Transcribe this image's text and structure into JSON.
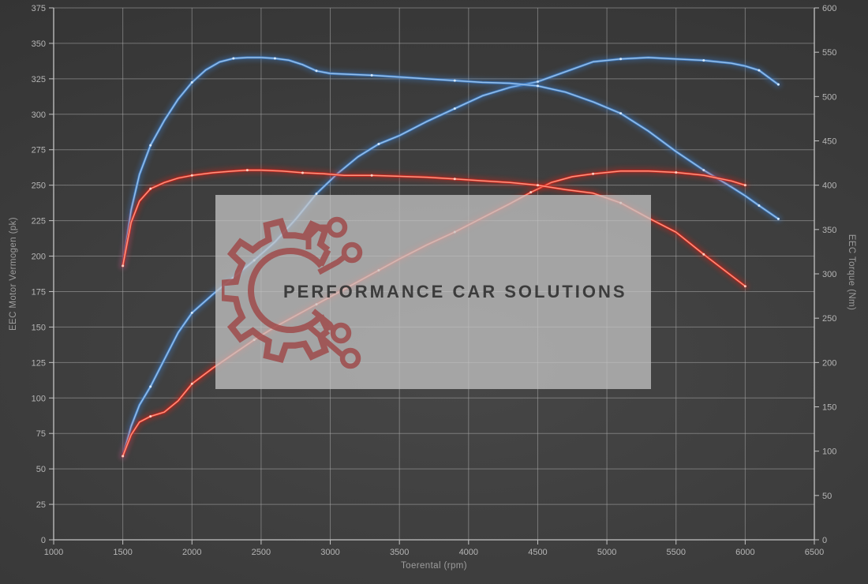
{
  "watermark": {
    "text": "PERFORMANCE CAR SOLUTIONS",
    "logo_icon": "gear-circuit-logo",
    "bg_color": "#c6c6c6",
    "logo_color": "#9e4343",
    "text_color": "#363636"
  },
  "colors": {
    "background": "#3d3d3d",
    "grid": "#a8a8a8",
    "axis": "#c4c4c4",
    "tick_text": "#b5b5b5",
    "axis_title_text": "#9d9d9d",
    "series_blue": "#3e7ec9",
    "series_red": "#da2318"
  },
  "chart_data": {
    "type": "line",
    "grid": "on",
    "legend": "none",
    "x_axis": {
      "label": "Toerental (rpm)",
      "min": 1000,
      "max": 6500,
      "tick_step": 500,
      "ticks": [
        1000,
        1500,
        2000,
        2500,
        3000,
        3500,
        4000,
        4500,
        5000,
        5500,
        6000,
        6500
      ]
    },
    "y_axis_left": {
      "label": "EEC Motor Vermogen (pk)",
      "min": 0,
      "max": 375,
      "tick_step": 25,
      "ticks": [
        0,
        25,
        50,
        75,
        100,
        125,
        150,
        175,
        200,
        225,
        250,
        275,
        300,
        325,
        350,
        375
      ]
    },
    "y_axis_right": {
      "label": "EEC Torque (Nm)",
      "min": 0,
      "max": 600,
      "tick_step": 50,
      "ticks": [
        0,
        50,
        100,
        150,
        200,
        250,
        300,
        350,
        400,
        450,
        500,
        550,
        600
      ]
    },
    "series": [
      {
        "name": "vermogen-blue",
        "axis": "left",
        "color": "#3e7ec9",
        "core": "#9ac4ee",
        "marker": "#ddeeff",
        "points": [
          [
            1500,
            59
          ],
          [
            1560,
            80
          ],
          [
            1620,
            95
          ],
          [
            1700,
            108
          ],
          [
            1800,
            127
          ],
          [
            1900,
            146
          ],
          [
            2000,
            160
          ],
          [
            2150,
            173
          ],
          [
            2300,
            185
          ],
          [
            2450,
            197
          ],
          [
            2600,
            210
          ],
          [
            2750,
            226
          ],
          [
            2900,
            244
          ],
          [
            3050,
            258
          ],
          [
            3200,
            270
          ],
          [
            3350,
            279
          ],
          [
            3500,
            285
          ],
          [
            3700,
            295
          ],
          [
            3900,
            304
          ],
          [
            4100,
            313
          ],
          [
            4300,
            319
          ],
          [
            4500,
            323
          ],
          [
            4700,
            330
          ],
          [
            4900,
            337
          ],
          [
            5100,
            339
          ],
          [
            5300,
            340
          ],
          [
            5500,
            339
          ],
          [
            5700,
            338
          ],
          [
            5900,
            336
          ],
          [
            6000,
            334
          ],
          [
            6100,
            331
          ],
          [
            6240,
            321
          ]
        ]
      },
      {
        "name": "torque-blue",
        "axis": "right",
        "color": "#3e7ec9",
        "core": "#9ac4ee",
        "marker": "#ddeeff",
        "points": [
          [
            1500,
            309
          ],
          [
            1560,
            372
          ],
          [
            1620,
            412
          ],
          [
            1700,
            445
          ],
          [
            1800,
            473
          ],
          [
            1900,
            497
          ],
          [
            2000,
            516
          ],
          [
            2100,
            530
          ],
          [
            2200,
            539
          ],
          [
            2300,
            543
          ],
          [
            2400,
            544
          ],
          [
            2500,
            544
          ],
          [
            2600,
            543
          ],
          [
            2700,
            541
          ],
          [
            2800,
            536
          ],
          [
            2900,
            529
          ],
          [
            3000,
            526
          ],
          [
            3150,
            525
          ],
          [
            3300,
            524
          ],
          [
            3500,
            522
          ],
          [
            3700,
            520
          ],
          [
            3900,
            518
          ],
          [
            4100,
            516
          ],
          [
            4300,
            515
          ],
          [
            4500,
            512
          ],
          [
            4700,
            505
          ],
          [
            4900,
            494
          ],
          [
            5100,
            481
          ],
          [
            5300,
            461
          ],
          [
            5500,
            438
          ],
          [
            5700,
            417
          ],
          [
            5900,
            398
          ],
          [
            6000,
            388
          ],
          [
            6100,
            377
          ],
          [
            6240,
            362
          ]
        ]
      },
      {
        "name": "vermogen-red",
        "axis": "left",
        "color": "#da2318",
        "core": "#ff9a85",
        "marker": "#ffd9cc",
        "points": [
          [
            1500,
            59
          ],
          [
            1560,
            74
          ],
          [
            1620,
            83
          ],
          [
            1700,
            87
          ],
          [
            1800,
            90
          ],
          [
            1900,
            98
          ],
          [
            2000,
            110
          ],
          [
            2150,
            121
          ],
          [
            2300,
            131
          ],
          [
            2450,
            141
          ],
          [
            2600,
            150
          ],
          [
            2750,
            158
          ],
          [
            2900,
            166
          ],
          [
            3050,
            174
          ],
          [
            3200,
            182
          ],
          [
            3350,
            190
          ],
          [
            3500,
            198
          ],
          [
            3700,
            208
          ],
          [
            3900,
            217
          ],
          [
            4100,
            227
          ],
          [
            4300,
            237
          ],
          [
            4450,
            245
          ],
          [
            4600,
            252
          ],
          [
            4750,
            256
          ],
          [
            4900,
            258
          ],
          [
            5100,
            260
          ],
          [
            5300,
            260
          ],
          [
            5500,
            259
          ],
          [
            5700,
            257
          ],
          [
            5900,
            253
          ],
          [
            6000,
            250
          ]
        ]
      },
      {
        "name": "torque-red",
        "axis": "right",
        "color": "#da2318",
        "core": "#ff9a85",
        "marker": "#ffd9cc",
        "points": [
          [
            1500,
            309
          ],
          [
            1560,
            358
          ],
          [
            1620,
            382
          ],
          [
            1700,
            396
          ],
          [
            1800,
            403
          ],
          [
            1900,
            408
          ],
          [
            2000,
            411
          ],
          [
            2150,
            414
          ],
          [
            2300,
            416
          ],
          [
            2400,
            417
          ],
          [
            2500,
            417
          ],
          [
            2650,
            416
          ],
          [
            2800,
            414
          ],
          [
            2950,
            413
          ],
          [
            3100,
            411
          ],
          [
            3300,
            411
          ],
          [
            3500,
            410
          ],
          [
            3700,
            409
          ],
          [
            3900,
            407
          ],
          [
            4100,
            405
          ],
          [
            4300,
            403
          ],
          [
            4500,
            400
          ],
          [
            4700,
            395
          ],
          [
            4900,
            391
          ],
          [
            5100,
            380
          ],
          [
            5300,
            363
          ],
          [
            5500,
            347
          ],
          [
            5700,
            322
          ],
          [
            5900,
            298
          ],
          [
            6000,
            286
          ]
        ]
      }
    ]
  }
}
